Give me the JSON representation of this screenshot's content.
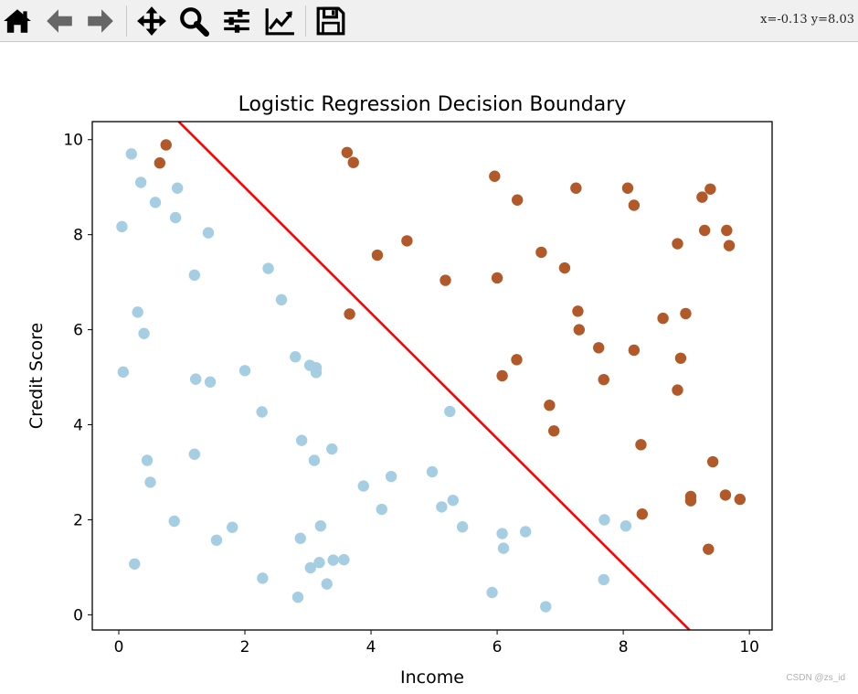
{
  "toolbar": {
    "buttons": [
      {
        "icon": "home-icon"
      },
      {
        "icon": "back-arrow-icon"
      },
      {
        "icon": "forward-arrow-icon"
      },
      {
        "icon": "pan-move-icon"
      },
      {
        "icon": "zoom-magnifier-icon"
      },
      {
        "icon": "subplots-configure-icon"
      },
      {
        "icon": "edit-axis-line-icon"
      },
      {
        "icon": "save-floppy-icon"
      }
    ],
    "coords_text": "x=-0.13 y=8.03"
  },
  "watermark": "CSDN @zs_id",
  "chart_data": {
    "type": "scatter",
    "title": "Logistic Regression Decision Boundary",
    "xlabel": "Income",
    "ylabel": "Credit Score",
    "xlim": [
      -0.42,
      10.36
    ],
    "ylim": [
      -0.32,
      10.38
    ],
    "xticks": [
      0,
      2,
      4,
      6,
      8,
      10
    ],
    "yticks": [
      0,
      2,
      4,
      6,
      8,
      10
    ],
    "colors": {
      "class0": "#a6cee3",
      "class1": "#b15928",
      "boundary": "#ff0000"
    },
    "boundary": {
      "x": [
        0.95,
        9.05
      ],
      "y": [
        10.38,
        -0.32
      ]
    },
    "series": [
      {
        "class": 0,
        "points": [
          [
            0.2,
            9.7
          ],
          [
            0.35,
            9.1
          ],
          [
            0.58,
            8.68
          ],
          [
            0.93,
            8.98
          ],
          [
            0.05,
            8.17
          ],
          [
            0.9,
            8.36
          ],
          [
            1.42,
            8.04
          ],
          [
            1.2,
            7.15
          ],
          [
            2.37,
            7.29
          ],
          [
            2.58,
            6.63
          ],
          [
            0.3,
            6.37
          ],
          [
            0.4,
            5.92
          ],
          [
            0.07,
            5.11
          ],
          [
            1.22,
            4.96
          ],
          [
            1.45,
            4.9
          ],
          [
            2.0,
            5.14
          ],
          [
            2.8,
            5.43
          ],
          [
            3.03,
            5.25
          ],
          [
            3.13,
            5.2
          ],
          [
            3.13,
            5.1
          ],
          [
            2.27,
            4.27
          ],
          [
            2.9,
            3.67
          ],
          [
            3.1,
            3.25
          ],
          [
            3.38,
            3.49
          ],
          [
            1.2,
            3.38
          ],
          [
            0.45,
            3.25
          ],
          [
            0.5,
            2.79
          ],
          [
            3.88,
            2.71
          ],
          [
            4.32,
            2.91
          ],
          [
            4.97,
            3.01
          ],
          [
            5.25,
            4.28
          ],
          [
            5.3,
            2.41
          ],
          [
            5.12,
            2.27
          ],
          [
            4.17,
            2.22
          ],
          [
            5.45,
            1.85
          ],
          [
            0.88,
            1.97
          ],
          [
            1.8,
            1.84
          ],
          [
            1.55,
            1.57
          ],
          [
            2.88,
            1.61
          ],
          [
            3.2,
            1.87
          ],
          [
            0.25,
            1.07
          ],
          [
            2.28,
            0.77
          ],
          [
            3.04,
            0.99
          ],
          [
            3.18,
            1.1
          ],
          [
            3.4,
            1.15
          ],
          [
            3.57,
            1.16
          ],
          [
            3.3,
            0.65
          ],
          [
            2.84,
            0.37
          ],
          [
            6.08,
            1.71
          ],
          [
            6.45,
            1.75
          ],
          [
            6.1,
            1.4
          ],
          [
            5.92,
            0.47
          ],
          [
            6.77,
            0.17
          ],
          [
            7.7,
            2.0
          ],
          [
            8.04,
            1.87
          ],
          [
            7.69,
            0.74
          ]
        ]
      },
      {
        "class": 1,
        "points": [
          [
            0.75,
            9.89
          ],
          [
            0.65,
            9.51
          ],
          [
            3.62,
            9.73
          ],
          [
            3.72,
            9.52
          ],
          [
            5.96,
            9.23
          ],
          [
            6.32,
            8.73
          ],
          [
            7.25,
            8.98
          ],
          [
            8.07,
            8.98
          ],
          [
            8.17,
            8.62
          ],
          [
            9.38,
            8.96
          ],
          [
            9.25,
            8.79
          ],
          [
            9.29,
            8.09
          ],
          [
            9.64,
            8.09
          ],
          [
            9.68,
            7.77
          ],
          [
            8.86,
            7.81
          ],
          [
            4.1,
            7.57
          ],
          [
            4.57,
            7.87
          ],
          [
            5.18,
            7.04
          ],
          [
            6.0,
            7.09
          ],
          [
            6.7,
            7.63
          ],
          [
            7.07,
            7.3
          ],
          [
            3.66,
            6.33
          ],
          [
            7.28,
            6.39
          ],
          [
            7.3,
            6.0
          ],
          [
            8.63,
            6.24
          ],
          [
            8.99,
            6.34
          ],
          [
            7.61,
            5.62
          ],
          [
            8.17,
            5.57
          ],
          [
            8.91,
            5.4
          ],
          [
            6.31,
            5.37
          ],
          [
            6.08,
            5.03
          ],
          [
            7.69,
            4.95
          ],
          [
            8.86,
            4.73
          ],
          [
            6.83,
            4.41
          ],
          [
            6.9,
            3.87
          ],
          [
            8.28,
            3.58
          ],
          [
            9.42,
            3.22
          ],
          [
            9.07,
            2.49
          ],
          [
            9.07,
            2.4
          ],
          [
            9.62,
            2.52
          ],
          [
            9.85,
            2.43
          ],
          [
            8.3,
            2.12
          ],
          [
            9.35,
            1.38
          ]
        ]
      }
    ]
  }
}
